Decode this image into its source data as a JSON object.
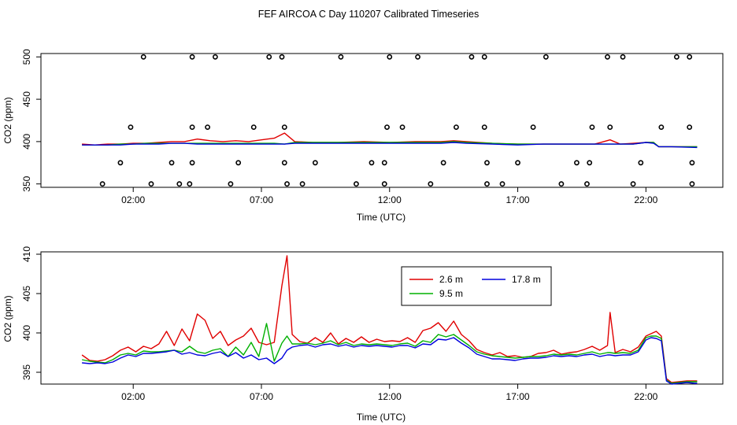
{
  "figure_title": "FEF AIRCOA C  Day 110207  Calibrated Timeseries",
  "colors": {
    "red": "#e00000",
    "green": "#00b000",
    "blue": "#0000dd",
    "axis": "#000000"
  },
  "chart_data": [
    {
      "id": "top",
      "type": "line",
      "xlabel": "Time (UTC)",
      "ylabel": "CO2 (ppm)",
      "xlim": [
        -1.6,
        25.0
      ],
      "ylim": [
        346,
        504
      ],
      "xticks": [
        2,
        7,
        12,
        17,
        22
      ],
      "xtick_labels": [
        "02:00",
        "07:00",
        "12:00",
        "17:00",
        "22:00"
      ],
      "yticks": [
        350,
        400,
        450,
        500
      ],
      "ytick_labels": [
        "350",
        "400",
        "450",
        "500"
      ],
      "series_x": [
        0,
        0.5,
        1,
        1.5,
        2,
        2.5,
        3,
        3.5,
        4,
        4.5,
        5,
        5.5,
        6,
        6.5,
        7,
        7.5,
        7.9,
        8.3,
        9,
        10,
        11,
        12,
        13,
        14,
        14.5,
        15,
        16,
        17,
        18,
        19,
        20,
        20.6,
        21,
        21.5,
        22,
        22.3,
        22.5,
        23,
        24
      ],
      "series": [
        {
          "name": "2.6 m",
          "color": "#e00000",
          "values": [
            397,
            396,
            397,
            397,
            398,
            398,
            399,
            400,
            400,
            403,
            401,
            400,
            401,
            400,
            402,
            404,
            410,
            400,
            399,
            399,
            400,
            399,
            400,
            400,
            401,
            400,
            398,
            397,
            397,
            397,
            397,
            402,
            397,
            398,
            399,
            399,
            394,
            394,
            394
          ]
        },
        {
          "name": "9.5 m",
          "color": "#00b000",
          "values": [
            396,
            396,
            396,
            397,
            397,
            398,
            398,
            398,
            398,
            398,
            398,
            398,
            398,
            398,
            398,
            398,
            397,
            399,
            399,
            399,
            399,
            399,
            399,
            399,
            400,
            399,
            398,
            397,
            397,
            397,
            397,
            397,
            397,
            397,
            399,
            399,
            394,
            394,
            394
          ]
        },
        {
          "name": "17.8 m",
          "color": "#0000dd",
          "values": [
            396,
            396,
            396,
            396,
            397,
            397,
            397,
            398,
            398,
            397,
            397,
            397,
            397,
            397,
            397,
            397,
            397,
            398,
            398,
            398,
            398,
            398,
            398,
            398,
            399,
            398,
            397,
            396,
            397,
            397,
            397,
            397,
            397,
            397,
            399,
            398,
            394,
            394,
            393
          ]
        }
      ],
      "cal_points_x": [
        0.8,
        1.5,
        1.9,
        2.4,
        2.7,
        3.5,
        3.8,
        4.2,
        4.3,
        4.3,
        4.3,
        4.9,
        5.2,
        5.8,
        6.1,
        6.7,
        7.3,
        7.8,
        7.9,
        7.9,
        8.0,
        8.6,
        9.1,
        10.1,
        10.7,
        11.3,
        11.8,
        11.8,
        11.9,
        12.0,
        12.5,
        13.1,
        13.6,
        14.1,
        14.6,
        15.2,
        15.7,
        15.7,
        15.8,
        15.8,
        16.4,
        17.0,
        17.6,
        18.1,
        18.7,
        19.3,
        19.7,
        19.8,
        19.9,
        20.5,
        20.6,
        21.1,
        21.5,
        21.8,
        22.6,
        23.2,
        23.7,
        23.7,
        23.8,
        23.8
      ],
      "cal_points_y": [
        350,
        375,
        417,
        500,
        350,
        375,
        350,
        350,
        375,
        417,
        500,
        417,
        500,
        350,
        375,
        417,
        500,
        500,
        417,
        375,
        350,
        350,
        375,
        500,
        350,
        375,
        350,
        375,
        417,
        500,
        417,
        500,
        350,
        375,
        417,
        500,
        500,
        417,
        375,
        350,
        350,
        375,
        417,
        500,
        350,
        375,
        350,
        375,
        417,
        500,
        417,
        500,
        350,
        375,
        417,
        500,
        500,
        417,
        375,
        350
      ]
    },
    {
      "id": "bottom",
      "type": "line",
      "xlabel": "Time (UTC)",
      "ylabel": "CO2 (ppm)",
      "xlim": [
        -1.6,
        25.0
      ],
      "ylim": [
        393.5,
        410.3
      ],
      "xticks": [
        2,
        7,
        12,
        17,
        22
      ],
      "xtick_labels": [
        "02:00",
        "07:00",
        "12:00",
        "17:00",
        "22:00"
      ],
      "yticks": [
        395,
        400,
        405,
        410
      ],
      "ytick_labels": [
        "395",
        "400",
        "405",
        "410"
      ],
      "legend": {
        "position": "top-center",
        "entries": [
          "2.6 m",
          "17.8 m",
          "9.5 m"
        ]
      },
      "series_x": [
        0,
        0.3,
        0.6,
        0.9,
        1.2,
        1.5,
        1.8,
        2.1,
        2.4,
        2.7,
        3.0,
        3.3,
        3.6,
        3.9,
        4.2,
        4.5,
        4.8,
        5.1,
        5.4,
        5.7,
        6.0,
        6.3,
        6.6,
        6.9,
        7.2,
        7.5,
        7.8,
        8.0,
        8.2,
        8.5,
        8.8,
        9.1,
        9.4,
        9.7,
        10.0,
        10.3,
        10.6,
        10.9,
        11.2,
        11.5,
        11.8,
        12.1,
        12.4,
        12.7,
        13.0,
        13.3,
        13.6,
        13.9,
        14.2,
        14.5,
        14.8,
        15.1,
        15.4,
        15.7,
        16.0,
        16.3,
        16.6,
        16.9,
        17.2,
        17.5,
        17.8,
        18.1,
        18.4,
        18.7,
        19.0,
        19.3,
        19.6,
        19.9,
        20.2,
        20.5,
        20.6,
        20.8,
        21.1,
        21.4,
        21.7,
        22.0,
        22.2,
        22.4,
        22.6,
        22.8,
        23.0,
        23.3,
        23.6,
        23.9,
        24.0
      ],
      "series": [
        {
          "name": "2.6 m",
          "color": "#e00000",
          "values": [
            397.2,
            396.5,
            396.4,
            396.6,
            397.1,
            397.8,
            398.2,
            397.6,
            398.3,
            398.0,
            398.6,
            400.2,
            398.4,
            400.5,
            399.0,
            402.4,
            401.6,
            399.3,
            400.2,
            398.4,
            399.1,
            399.6,
            400.6,
            398.8,
            398.5,
            398.8,
            406.0,
            409.8,
            399.8,
            398.9,
            398.7,
            399.4,
            398.8,
            400.0,
            398.6,
            399.3,
            398.8,
            399.5,
            398.8,
            399.2,
            398.9,
            399.0,
            398.9,
            399.4,
            398.8,
            400.3,
            400.6,
            401.3,
            400.2,
            401.5,
            399.8,
            399.0,
            397.9,
            397.5,
            397.2,
            397.5,
            397.0,
            397.1,
            396.9,
            397.0,
            397.4,
            397.5,
            397.8,
            397.3,
            397.5,
            397.6,
            397.9,
            398.3,
            397.8,
            398.4,
            402.6,
            397.5,
            397.9,
            397.6,
            398.2,
            399.6,
            399.9,
            400.2,
            399.6,
            394.2,
            393.7,
            393.8,
            393.9,
            393.9,
            393.9
          ]
        },
        {
          "name": "9.5 m",
          "color": "#00b000",
          "values": [
            396.6,
            396.4,
            396.3,
            396.2,
            396.6,
            397.2,
            397.4,
            397.2,
            397.7,
            397.6,
            397.6,
            397.7,
            397.8,
            397.6,
            398.3,
            397.6,
            397.4,
            397.8,
            398.0,
            397.0,
            398.2,
            397.2,
            398.8,
            397.0,
            401.2,
            396.4,
            398.7,
            399.6,
            398.6,
            398.6,
            398.7,
            398.5,
            398.7,
            399.0,
            398.5,
            398.8,
            398.4,
            398.6,
            398.5,
            398.6,
            398.5,
            398.4,
            398.6,
            398.7,
            398.3,
            399.0,
            398.8,
            399.8,
            399.5,
            399.8,
            399.1,
            398.4,
            397.6,
            397.3,
            397.1,
            397.0,
            396.9,
            396.8,
            396.9,
            397.0,
            397.0,
            397.1,
            397.3,
            397.2,
            397.3,
            397.2,
            397.4,
            397.6,
            397.3,
            397.5,
            397.5,
            397.4,
            397.5,
            397.4,
            397.8,
            399.4,
            399.6,
            399.6,
            399.3,
            394.0,
            393.6,
            393.7,
            393.8,
            393.8,
            393.8
          ]
        },
        {
          "name": "17.8 m",
          "color": "#0000dd",
          "values": [
            396.2,
            396.1,
            396.2,
            396.1,
            396.3,
            396.8,
            397.2,
            397.0,
            397.4,
            397.4,
            397.5,
            397.6,
            397.8,
            397.3,
            397.5,
            397.2,
            397.1,
            397.4,
            397.6,
            397.0,
            397.5,
            396.8,
            397.2,
            396.6,
            396.8,
            396.1,
            396.8,
            397.8,
            398.2,
            398.4,
            398.5,
            398.2,
            398.5,
            398.6,
            398.3,
            398.5,
            398.2,
            398.4,
            398.3,
            398.4,
            398.3,
            398.2,
            398.4,
            398.4,
            398.1,
            398.6,
            398.5,
            399.2,
            399.1,
            399.4,
            398.7,
            398.1,
            397.3,
            397.0,
            396.7,
            396.7,
            396.6,
            396.5,
            396.7,
            396.8,
            396.8,
            396.9,
            397.1,
            397.0,
            397.1,
            397.0,
            397.2,
            397.3,
            397.0,
            397.2,
            397.2,
            397.1,
            397.2,
            397.2,
            397.6,
            399.1,
            399.4,
            399.3,
            399.0,
            393.9,
            393.5,
            393.6,
            393.7,
            393.6,
            393.6
          ]
        }
      ]
    }
  ]
}
